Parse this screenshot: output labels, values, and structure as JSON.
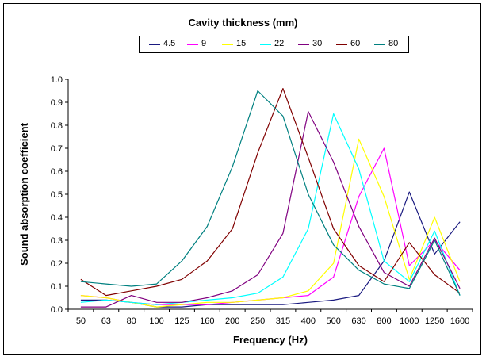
{
  "chart_data": {
    "type": "line",
    "title": "Cavity thickness (mm)",
    "xlabel": "Frequency (Hz)",
    "ylabel": "Sound absorption coefficient",
    "categories": [
      "50",
      "63",
      "80",
      "100",
      "125",
      "160",
      "200",
      "250",
      "315",
      "400",
      "500",
      "630",
      "800",
      "1000",
      "1250",
      "1600"
    ],
    "ylim": [
      0,
      1.0
    ],
    "yticks": [
      "0.0",
      "0.1",
      "0.2",
      "0.3",
      "0.4",
      "0.5",
      "0.6",
      "0.7",
      "0.8",
      "0.9",
      "1.0"
    ],
    "legend_placement": "top-center",
    "grid": false,
    "series": [
      {
        "name": "4.5",
        "color": "#1a1a80",
        "values": [
          0.04,
          0.04,
          0.03,
          0.01,
          0.01,
          0.02,
          0.02,
          0.02,
          0.02,
          0.03,
          0.04,
          0.06,
          0.21,
          0.51,
          0.24,
          0.38
        ]
      },
      {
        "name": "9",
        "color": "#ff00ff",
        "values": [
          0.06,
          0.05,
          0.03,
          0.02,
          0.02,
          0.02,
          0.03,
          0.04,
          0.05,
          0.06,
          0.14,
          0.49,
          0.7,
          0.19,
          0.3,
          0.17
        ]
      },
      {
        "name": "15",
        "color": "#ffff00",
        "values": [
          0.06,
          0.05,
          0.03,
          0.01,
          0.02,
          0.03,
          0.03,
          0.04,
          0.05,
          0.08,
          0.2,
          0.74,
          0.49,
          0.13,
          0.4,
          0.12
        ]
      },
      {
        "name": "22",
        "color": "#00ffff",
        "values": [
          0.03,
          0.04,
          0.03,
          0.02,
          0.03,
          0.04,
          0.05,
          0.07,
          0.14,
          0.35,
          0.85,
          0.61,
          0.21,
          0.12,
          0.34,
          0.06
        ]
      },
      {
        "name": "30",
        "color": "#800080",
        "values": [
          0.01,
          0.01,
          0.06,
          0.03,
          0.03,
          0.05,
          0.08,
          0.15,
          0.33,
          0.86,
          0.64,
          0.36,
          0.16,
          0.1,
          0.31,
          0.09
        ]
      },
      {
        "name": "60",
        "color": "#800000",
        "values": [
          0.13,
          0.06,
          0.08,
          0.1,
          0.13,
          0.21,
          0.35,
          0.68,
          0.96,
          0.66,
          0.35,
          0.19,
          0.12,
          0.29,
          0.15,
          0.07
        ]
      },
      {
        "name": "80",
        "color": "#008080",
        "values": [
          0.12,
          0.11,
          0.1,
          0.11,
          0.21,
          0.36,
          0.62,
          0.95,
          0.84,
          0.5,
          0.28,
          0.17,
          0.11,
          0.09,
          0.3,
          0.06
        ]
      }
    ]
  }
}
